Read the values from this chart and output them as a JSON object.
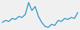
{
  "y": [
    3,
    4,
    3.5,
    5,
    4.5,
    6,
    5.5,
    7,
    13,
    9,
    11,
    6,
    3,
    1,
    0.5,
    2,
    1.5,
    4,
    3.5,
    5,
    4.5,
    5.5,
    5,
    8
  ],
  "line_color": "#3399cc",
  "background_color": "#f0f0f0",
  "linewidth": 1.1
}
